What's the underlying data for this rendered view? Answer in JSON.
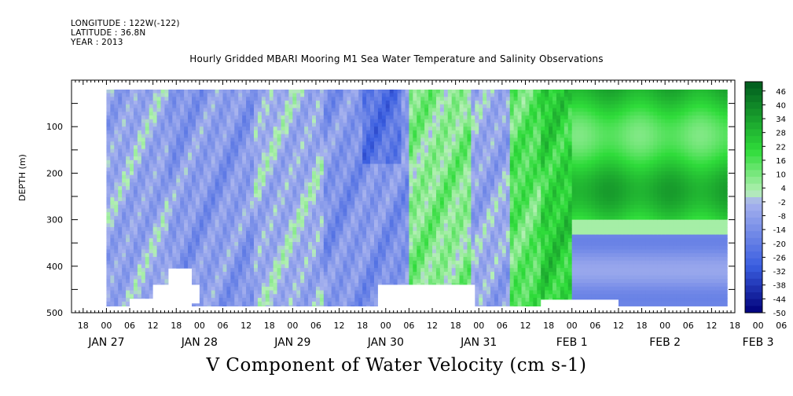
{
  "meta": {
    "longitude": "LONGITUDE : 122W(-122)",
    "latitude": "LATITUDE : 36.8N",
    "year": "YEAR : 2013"
  },
  "title": "Hourly Gridded MBARI Mooring M1 Sea Water Temperature and Salinity Observations",
  "variable_title": "V Component of Water Velocity (cm s-1)",
  "colors": {
    "neg_deep": "#00007a",
    "neg_mid": "#3a5ee0",
    "neg_light": "#a8b3ee",
    "pos_light": "#b4f0b4",
    "pos_mid": "#2fdc3a",
    "pos_deep": "#005a1e"
  },
  "chart_data": {
    "type": "heatmap",
    "ylabel": "DEPTH (m)",
    "xlabel": "",
    "ylim": [
      500,
      0
    ],
    "y_ticks": [
      100,
      200,
      300,
      400,
      500
    ],
    "x_range_hours": [
      -9,
      162
    ],
    "x_tick_hour_labels": [
      "18",
      "00",
      "06",
      "12",
      "18",
      "00",
      "06",
      "12",
      "18",
      "00",
      "06",
      "12",
      "18",
      "00",
      "06",
      "12",
      "18",
      "00",
      "06",
      "12",
      "18",
      "00",
      "06",
      "12",
      "18",
      "00",
      "06",
      "12",
      "18",
      "00",
      "06"
    ],
    "x_date_labels": [
      "JAN 27",
      "JAN 28",
      "JAN 29",
      "JAN 30",
      "JAN 31",
      "FEB  1",
      "FEB  2",
      "FEB  3"
    ],
    "colorbar_levels": [
      46,
      40,
      34,
      28,
      22,
      16,
      10,
      4,
      -2,
      -8,
      -14,
      -20,
      -26,
      -32,
      -38,
      -44,
      -50
    ],
    "value_range": [
      -50,
      50
    ],
    "description_of_field": "Alternating bands of weak southward (blue, about -2 to -20) and northward (green, about 4 to 28) velocity from Jan 28 to Feb 1; after Feb 2 00 a strong northward jet (about 16 to 34) occupies the upper ~300 m with southward flow below ~320 m."
  }
}
